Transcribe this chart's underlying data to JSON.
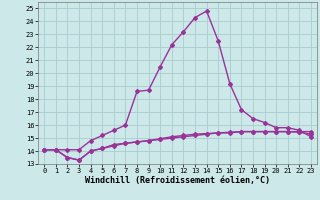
{
  "xlabel": "Windchill (Refroidissement éolien,°C)",
  "background_color": "#cce8e8",
  "grid_color": "#aacccc",
  "line_color": "#993399",
  "x_values": [
    0,
    1,
    2,
    3,
    4,
    5,
    6,
    7,
    8,
    9,
    10,
    11,
    12,
    13,
    14,
    15,
    16,
    17,
    18,
    19,
    20,
    21,
    22,
    23
  ],
  "line1_y": [
    14.1,
    14.1,
    13.5,
    13.3,
    14.0,
    14.2,
    14.5,
    14.6,
    14.7,
    14.8,
    14.9,
    15.0,
    15.1,
    15.2,
    15.3,
    15.4,
    15.4,
    15.5,
    15.5,
    15.5,
    15.5,
    15.5,
    15.5,
    15.5
  ],
  "line2_y": [
    14.1,
    14.1,
    13.5,
    13.3,
    14.0,
    14.2,
    14.4,
    14.6,
    14.7,
    14.8,
    14.95,
    15.1,
    15.2,
    15.3,
    15.35,
    15.4,
    15.45,
    15.5,
    15.5,
    15.5,
    15.5,
    15.5,
    15.45,
    15.3
  ],
  "line3_y": [
    14.1,
    14.1,
    14.1,
    14.1,
    14.8,
    15.2,
    15.6,
    16.0,
    18.6,
    18.7,
    20.5,
    22.2,
    23.2,
    24.3,
    24.8,
    22.5,
    19.2,
    17.2,
    16.5,
    16.2,
    15.8,
    15.8,
    15.6,
    15.1
  ],
  "xlim": [
    -0.5,
    23.5
  ],
  "ylim": [
    13,
    25.5
  ],
  "yticks": [
    13,
    14,
    15,
    16,
    17,
    18,
    19,
    20,
    21,
    22,
    23,
    24,
    25
  ],
  "xticks": [
    0,
    1,
    2,
    3,
    4,
    5,
    6,
    7,
    8,
    9,
    10,
    11,
    12,
    13,
    14,
    15,
    16,
    17,
    18,
    19,
    20,
    21,
    22,
    23
  ],
  "marker": "D",
  "marker_size": 2,
  "linewidth": 1.0,
  "tick_fontsize": 5.0,
  "xlabel_fontsize": 6.0
}
